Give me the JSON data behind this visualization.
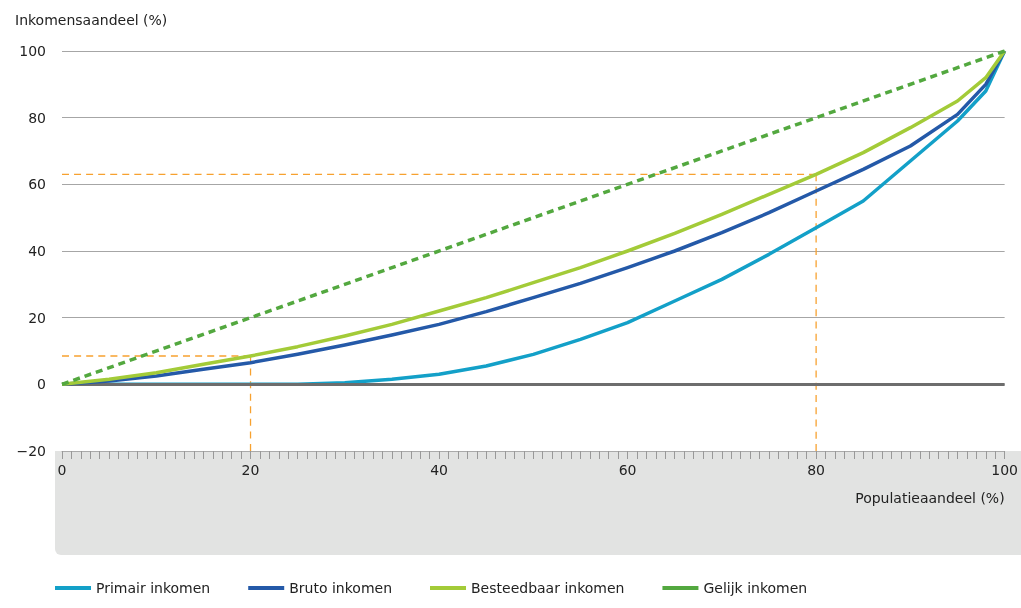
{
  "chart_data": {
    "type": "line",
    "xlabel": "Populatieaandeel (%)",
    "ylabel": "Inkomensaandeel (%)",
    "xlim": [
      0,
      100
    ],
    "xticks": [
      0,
      20,
      40,
      60,
      80,
      100
    ],
    "ylim": [
      -20,
      100
    ],
    "yticks": [
      {
        "value": -20,
        "label": "−20"
      },
      0,
      20,
      40,
      60,
      80,
      100
    ],
    "grid": "y",
    "legend": "bottom left",
    "marker": "none",
    "ref_lines": [
      {
        "axis": "y",
        "value": 0,
        "color": "#6d6d6d"
      }
    ],
    "series": [
      {
        "name": "Primair inkomen",
        "color": "#13a0c8",
        "line_style": "solid",
        "x": [
          0,
          10,
          20,
          25,
          30,
          35,
          40,
          45,
          50,
          55,
          60,
          65,
          70,
          75,
          80,
          85,
          90,
          95,
          98,
          100
        ],
        "values": [
          0,
          0,
          0,
          0,
          0.5,
          1.5,
          3,
          5.5,
          9,
          13.5,
          18.5,
          25,
          31.5,
          39,
          47,
          55,
          67,
          79,
          88,
          100
        ]
      },
      {
        "name": "Bruto inkomen",
        "color": "#2459a8",
        "line_style": "solid",
        "x": [
          0,
          5,
          10,
          15,
          20,
          25,
          30,
          35,
          40,
          45,
          50,
          55,
          60,
          65,
          70,
          75,
          80,
          85,
          90,
          95,
          98,
          100
        ],
        "values": [
          0,
          1,
          2.5,
          4.5,
          6.5,
          9,
          11.8,
          14.8,
          18,
          21.8,
          26,
          30.3,
          35,
          40,
          45.5,
          51.5,
          58,
          64.5,
          71.5,
          81,
          90,
          100
        ]
      },
      {
        "name": "Besteedbaar inkomen",
        "color": "#a3cb38",
        "line_style": "solid",
        "x": [
          0,
          5,
          10,
          15,
          20,
          25,
          30,
          35,
          40,
          45,
          50,
          55,
          60,
          65,
          70,
          75,
          80,
          85,
          90,
          95,
          98,
          100
        ],
        "values": [
          0,
          1.5,
          3.5,
          6,
          8.5,
          11.3,
          14.5,
          18,
          22,
          26,
          30.5,
          35,
          40,
          45.3,
          51,
          57,
          63,
          69.5,
          77,
          85,
          92,
          100
        ]
      },
      {
        "name": "Gelijk inkomen",
        "color": "#53a83f",
        "line_style": "dashed",
        "x": [
          0,
          100
        ],
        "values": [
          0,
          100
        ]
      },
      {
        "color": "#f7a12f",
        "line_style": "dashed",
        "x": [
          0,
          20,
          20
        ],
        "values": [
          8.5,
          8.5,
          -20
        ]
      },
      {
        "color": "#f7a12f",
        "line_style": "dashed",
        "x": [
          0,
          80,
          80
        ],
        "values": [
          63,
          63,
          -20
        ]
      }
    ]
  }
}
